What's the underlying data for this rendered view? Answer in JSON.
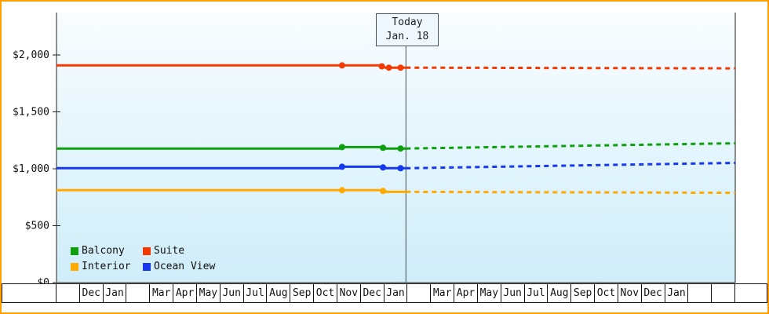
{
  "colors": {
    "frame_border": "#ffa000",
    "plot_bg_top": "#f9fdff",
    "plot_bg_bottom": "#cfedf9",
    "axis": "#222222",
    "today_line": "#44505a",
    "today_box_bg": "#eef8fe"
  },
  "chart_data": {
    "type": "line",
    "title": "",
    "xlabel": "",
    "ylabel": "",
    "ylim": [
      0,
      2370
    ],
    "grid": false,
    "legend_position": "bottom-left-inside",
    "x_axis": {
      "months": [
        "",
        "Dec",
        "Jan",
        "",
        "Mar",
        "Apr",
        "May",
        "Jun",
        "Jul",
        "Aug",
        "Sep",
        "Oct",
        "Nov",
        "Dec",
        "Jan",
        "",
        "Mar",
        "Apr",
        "May",
        "Jun",
        "Jul",
        "Aug",
        "Sep",
        "Oct",
        "Nov",
        "Dec",
        "Jan",
        "",
        ""
      ]
    },
    "y_axis": {
      "ticks": [
        {
          "label": "$0",
          "value": 0
        },
        {
          "label": "$500",
          "value": 500
        },
        {
          "label": "$1,000",
          "value": 1000
        },
        {
          "label": "$1,500",
          "value": 1500
        },
        {
          "label": "$2,000",
          "value": 2000
        }
      ]
    },
    "today": {
      "line1": "Today",
      "line2": "Jan. 18",
      "x_slot": 14.93
    },
    "series": [
      {
        "name": "Suite",
        "color": "#f43a00",
        "solid": [
          [
            0,
            1908
          ],
          [
            13.85,
            1908
          ],
          [
            14.05,
            1888
          ],
          [
            14.93,
            1888
          ]
        ],
        "dashed": [
          [
            14.93,
            1888
          ],
          [
            29,
            1882
          ]
        ],
        "markers": [
          [
            12.2,
            1908
          ],
          [
            13.9,
            1900
          ],
          [
            14.2,
            1888
          ],
          [
            14.7,
            1888
          ]
        ]
      },
      {
        "name": "Balcony",
        "color": "#0da00d",
        "solid": [
          [
            0,
            1178
          ],
          [
            12.1,
            1178
          ],
          [
            12.3,
            1190
          ],
          [
            13.85,
            1190
          ],
          [
            14.05,
            1178
          ],
          [
            14.93,
            1178
          ]
        ],
        "dashed": [
          [
            14.93,
            1178
          ],
          [
            29,
            1224
          ]
        ],
        "markers": [
          [
            12.2,
            1190
          ],
          [
            13.95,
            1184
          ],
          [
            14.7,
            1178
          ]
        ]
      },
      {
        "name": "Ocean View",
        "color": "#1638f0",
        "solid": [
          [
            0,
            1005
          ],
          [
            12.1,
            1005
          ],
          [
            12.3,
            1018
          ],
          [
            13.85,
            1018
          ],
          [
            14.05,
            1005
          ],
          [
            14.93,
            1005
          ]
        ],
        "dashed": [
          [
            14.93,
            1005
          ],
          [
            29,
            1052
          ]
        ],
        "markers": [
          [
            12.2,
            1018
          ],
          [
            13.95,
            1012
          ],
          [
            14.7,
            1005
          ]
        ]
      },
      {
        "name": "Interior",
        "color": "#ffaa00",
        "solid": [
          [
            0,
            812
          ],
          [
            13.85,
            812
          ],
          [
            14.05,
            797
          ],
          [
            14.93,
            797
          ]
        ],
        "dashed": [
          [
            14.93,
            797
          ],
          [
            29,
            789
          ]
        ],
        "markers": [
          [
            12.2,
            812
          ],
          [
            13.95,
            805
          ]
        ]
      }
    ],
    "legend": [
      {
        "label": "Balcony",
        "color": "#0da00d"
      },
      {
        "label": "Suite",
        "color": "#f43a00"
      },
      {
        "label": "Interior",
        "color": "#ffaa00"
      },
      {
        "label": "Ocean View",
        "color": "#1638f0"
      }
    ]
  }
}
